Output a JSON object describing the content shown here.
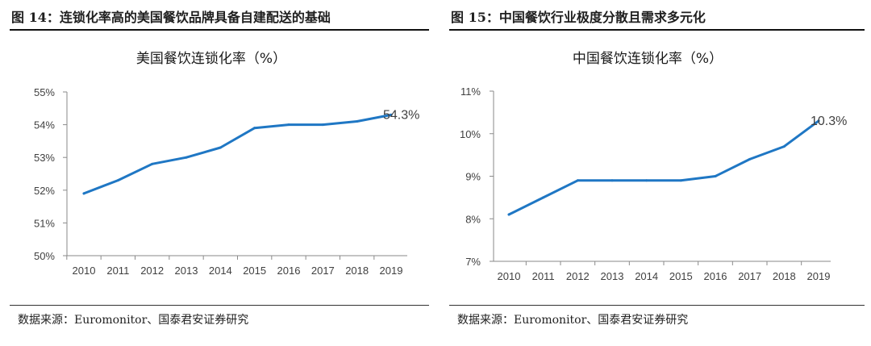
{
  "figures": [
    {
      "title": "图 14：连锁化率高的美国餐饮品牌具备自建配送的基础",
      "source": "数据来源：Euromonitor、国泰君安证券研究"
    },
    {
      "title": "图 15：中国餐饮行业极度分散且需求多元化",
      "source": "数据来源：Euromonitor、国泰君安证券研究"
    }
  ],
  "chart_data": [
    {
      "type": "line",
      "title": "美国餐饮连锁化率（%）",
      "xlabel": "",
      "ylabel": "",
      "categories": [
        "2010",
        "2011",
        "2012",
        "2013",
        "2014",
        "2015",
        "2016",
        "2017",
        "2018",
        "2019"
      ],
      "series": [
        {
          "values": [
            51.9,
            52.3,
            52.8,
            53.0,
            53.3,
            53.9,
            54.0,
            54.0,
            54.1,
            54.3
          ],
          "color": "#1f77c4"
        }
      ],
      "ylim": [
        50,
        55
      ],
      "yticks": [
        50,
        51,
        52,
        53,
        54,
        55
      ],
      "ytick_labels": [
        "50%",
        "51%",
        "52%",
        "53%",
        "54%",
        "55%"
      ],
      "end_label": "54.3%",
      "grid": false
    },
    {
      "type": "line",
      "title": "中国餐饮连锁化率（%）",
      "xlabel": "",
      "ylabel": "",
      "categories": [
        "2010",
        "2011",
        "2012",
        "2013",
        "2014",
        "2015",
        "2016",
        "2017",
        "2018",
        "2019"
      ],
      "series": [
        {
          "values": [
            8.1,
            8.5,
            8.9,
            8.9,
            8.9,
            8.9,
            9.0,
            9.4,
            9.7,
            10.3
          ],
          "color": "#1f77c4"
        }
      ],
      "ylim": [
        7,
        11
      ],
      "yticks": [
        7,
        8,
        9,
        10,
        11
      ],
      "ytick_labels": [
        "7%",
        "8%",
        "9%",
        "10%",
        "11%"
      ],
      "end_label": "10.3%",
      "grid": false
    }
  ]
}
